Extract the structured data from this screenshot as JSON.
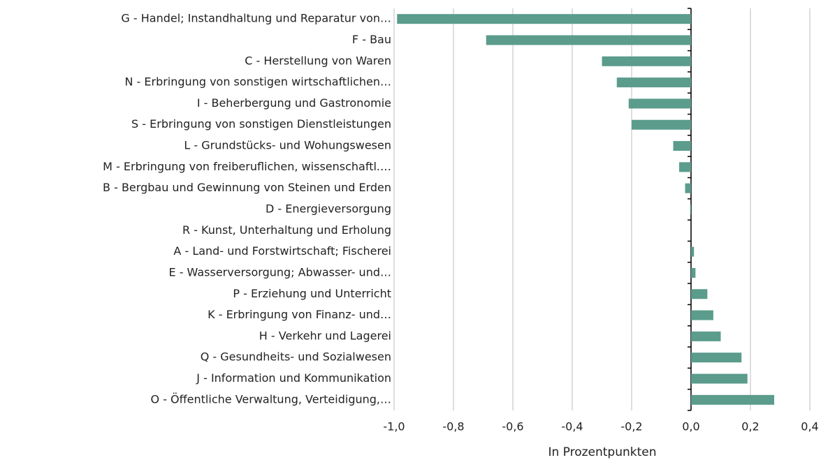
{
  "chart_data": {
    "type": "bar",
    "orientation": "horizontal",
    "x_label": "In Prozentpunkten",
    "categories": [
      "G - Handel; Instandhaltung und Reparatur von…",
      "F - Bau",
      "C - Herstellung von Waren",
      "N - Erbringung von sonstigen wirtschaftlichen…",
      "I - Beherbergung und Gastronomie",
      "S - Erbringung von sonstigen Dienstleistungen",
      "L - Grundstücks- und Wohungswesen",
      "M - Erbringung von freiberuflichen, wissenschaftl.…",
      "B - Bergbau und Gewinnung von Steinen und Erden",
      "D - Energieversorgung",
      "R - Kunst, Unterhaltung und Erholung",
      "A - Land- und Forstwirtschaft; Fischerei",
      "E - Wasserversorgung; Abwasser- und…",
      "P - Erziehung und Unterricht",
      "K - Erbringung von Finanz- und…",
      "H - Verkehr und Lagerei",
      "Q - Gesundheits- und Sozialwesen",
      "J - Information und Kommunikation",
      "O - Öffentliche Verwaltung, Verteidigung,…"
    ],
    "values": [
      -0.99,
      -0.69,
      -0.3,
      -0.25,
      -0.21,
      -0.2,
      -0.06,
      -0.04,
      -0.02,
      -0.003,
      0,
      0.01,
      0.015,
      0.055,
      0.075,
      0.1,
      0.17,
      0.19,
      0.28
    ],
    "color": "#5b9c8c",
    "xlim": [
      -1.0,
      0.4
    ],
    "xticks": [
      {
        "value": -1.0,
        "label": "-1,0"
      },
      {
        "value": -0.8,
        "label": "-0,8"
      },
      {
        "value": -0.6,
        "label": "-0,6"
      },
      {
        "value": -0.4,
        "label": "-0,4"
      },
      {
        "value": -0.2,
        "label": "-0,2"
      },
      {
        "value": 0,
        "label": "0,0"
      },
      {
        "value": 0.2,
        "label": "0,2"
      },
      {
        "value": 0.4,
        "label": "0,4"
      }
    ],
    "grid": true
  }
}
